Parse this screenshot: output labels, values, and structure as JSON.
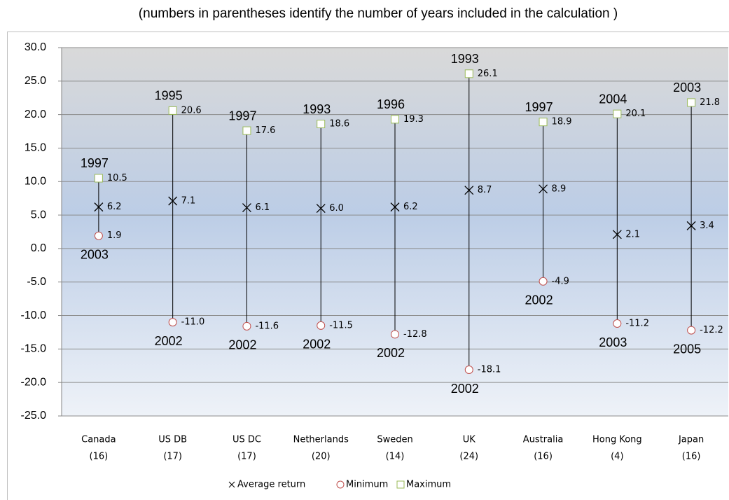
{
  "chart_data": {
    "type": "high-low-average",
    "subtitle": "(numbers in parentheses identify the number of years included in the calculation )",
    "categories": [
      "Canada",
      "US DB",
      "US DC",
      "Netherlands",
      "Sweden",
      "UK",
      "Australia",
      "Hong Kong",
      "Japan"
    ],
    "category_sublabels": [
      "(16)",
      "(17)",
      "(17)",
      "(20)",
      "(14)",
      "(24)",
      "(16)",
      "(4)",
      "(16)"
    ],
    "series": [
      {
        "name": "Average return",
        "color": "#000000",
        "marker": "x",
        "values": [
          6.2,
          7.1,
          6.1,
          6.0,
          6.2,
          8.7,
          8.9,
          2.1,
          3.4
        ],
        "value_labels": [
          "6.2",
          "7.1",
          "6.1",
          "6.0",
          "6.2",
          "8.7",
          "8.9",
          "2.1",
          "3.4"
        ]
      },
      {
        "name": "Minimum",
        "color": "#c0504d",
        "marker": "circle",
        "values": [
          1.9,
          -11.0,
          -11.6,
          -11.5,
          -12.8,
          -18.1,
          -4.9,
          -11.2,
          -12.2
        ],
        "value_labels": [
          "1.9",
          "-11.0",
          "-11.6",
          "-11.5",
          "-12.8",
          "-18.1",
          "-4.9",
          "-11.2",
          "-12.2"
        ],
        "year_labels": [
          "2003",
          "2002",
          "2002",
          "2002",
          "2002",
          "2002",
          "2002",
          "2003",
          "2005"
        ]
      },
      {
        "name": "Maximum",
        "color": "#9bbb59",
        "marker": "square",
        "values": [
          10.5,
          20.6,
          17.6,
          18.6,
          19.3,
          26.1,
          18.9,
          20.1,
          21.8
        ],
        "value_labels": [
          "10.5",
          "20.6",
          "17.6",
          "18.6",
          "19.3",
          "26.1",
          "18.9",
          "20.1",
          "21.8"
        ],
        "year_labels": [
          "1997",
          "1995",
          "1997",
          "1993",
          "1996",
          "1993",
          "1997",
          "2004",
          "2003"
        ]
      }
    ],
    "ylim": [
      -25,
      30
    ],
    "yticks": [
      {
        "value": -25,
        "label": "-25.0"
      },
      {
        "value": -20,
        "label": "-20.0"
      },
      {
        "value": -15,
        "label": "-15.0"
      },
      {
        "value": -10,
        "label": "-10.0"
      },
      {
        "value": -5,
        "label": "-5.0"
      },
      {
        "value": 0,
        "label": "0.0"
      },
      {
        "value": 5,
        "label": "5.0"
      },
      {
        "value": 10,
        "label": "10.0"
      },
      {
        "value": 15,
        "label": "15.0"
      },
      {
        "value": 20,
        "label": "20.0"
      },
      {
        "value": 25,
        "label": "25.0"
      },
      {
        "value": 30,
        "label": "30.0"
      }
    ],
    "grid": true,
    "legend": "bottom"
  }
}
